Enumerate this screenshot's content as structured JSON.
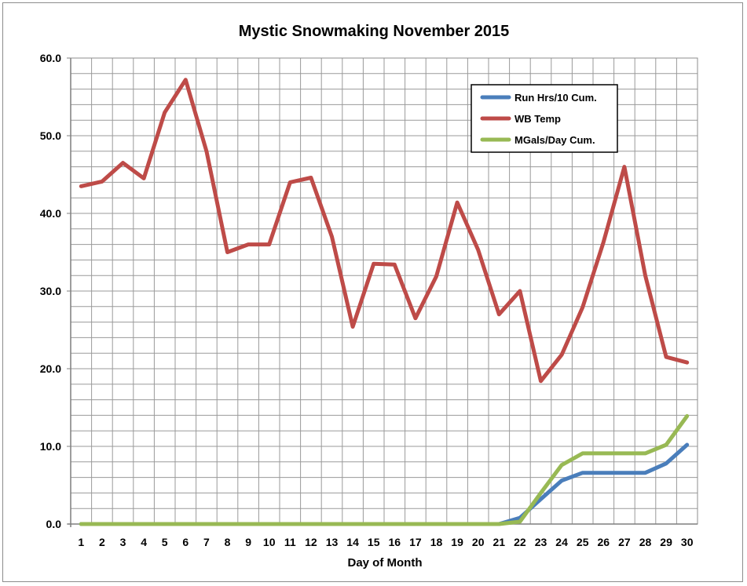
{
  "chart_data": {
    "type": "line",
    "title": "Mystic Snowmaking November 2015",
    "xlabel": "Day of Month",
    "ylabel": "",
    "x": [
      1,
      2,
      3,
      4,
      5,
      6,
      7,
      8,
      9,
      10,
      11,
      12,
      13,
      14,
      15,
      16,
      17,
      18,
      19,
      20,
      21,
      22,
      23,
      24,
      25,
      26,
      27,
      28,
      29,
      30
    ],
    "ylim": [
      0,
      60
    ],
    "yticks": [
      "0.0",
      "10.0",
      "20.0",
      "30.0",
      "40.0",
      "50.0",
      "60.0"
    ],
    "grid": true,
    "legend_position": "top-right",
    "series": [
      {
        "name": "Run Hrs/10 Cum.",
        "color": "#4a7ebb",
        "values": [
          0,
          0,
          0,
          0,
          0,
          0,
          0,
          0,
          0,
          0,
          0,
          0,
          0,
          0,
          0,
          0,
          0,
          0,
          0,
          0,
          0,
          0.8,
          3.2,
          5.6,
          6.6,
          6.6,
          6.6,
          6.6,
          7.8,
          10.2
        ]
      },
      {
        "name": "WB Temp",
        "color": "#be4b48",
        "values": [
          43.5,
          44.1,
          46.5,
          44.5,
          53,
          57.2,
          48,
          35,
          36,
          36,
          44,
          44.6,
          37,
          25.4,
          33.5,
          33.4,
          26.5,
          31.9,
          41.4,
          35.3,
          27,
          30,
          18.4,
          21.8,
          27.9,
          36.3,
          46,
          32,
          21.5,
          20.8
        ]
      },
      {
        "name": "MGals/Day Cum.",
        "color": "#98b954",
        "values": [
          0,
          0,
          0,
          0,
          0,
          0,
          0,
          0,
          0,
          0,
          0,
          0,
          0,
          0,
          0,
          0,
          0,
          0,
          0,
          0,
          0,
          0.3,
          4,
          7.6,
          9.1,
          9.1,
          9.1,
          9.1,
          10.2,
          13.9
        ]
      }
    ]
  }
}
